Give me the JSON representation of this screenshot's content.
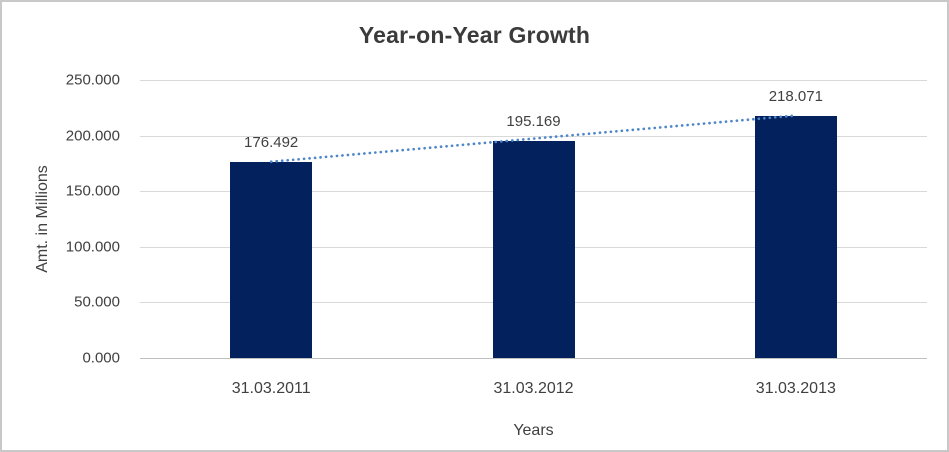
{
  "chart_data": {
    "type": "bar",
    "title": "Year-on-Year Growth",
    "xlabel": "Years",
    "ylabel": "Amt. in Millions",
    "categories": [
      "31.03.2011",
      "31.03.2012",
      "31.03.2013"
    ],
    "values": [
      176.492,
      195.169,
      218.071
    ],
    "data_labels": [
      "176.492",
      "195.169",
      "218.071"
    ],
    "ylim": [
      0,
      250
    ],
    "y_ticks": [
      {
        "value": 0,
        "label": "0.000"
      },
      {
        "value": 50,
        "label": "50.000"
      },
      {
        "value": 100,
        "label": "100.000"
      },
      {
        "value": 150,
        "label": "150.000"
      },
      {
        "value": 200,
        "label": "200.000"
      },
      {
        "value": 250,
        "label": "250.000"
      }
    ],
    "grid": true,
    "legend": "none",
    "trendline": {
      "type": "linear",
      "style": "dotted",
      "from_category_index": 0,
      "to_category_index": 2
    },
    "colors": {
      "bar": "#03215C",
      "trendline": "#4E86C9",
      "gridline": "#D9D9D9",
      "axis_line": "#BFBFBF",
      "text": "#404040",
      "title_text": "#3B3B3B",
      "border": "#C8C8C8",
      "background": "#FFFFFF"
    }
  }
}
